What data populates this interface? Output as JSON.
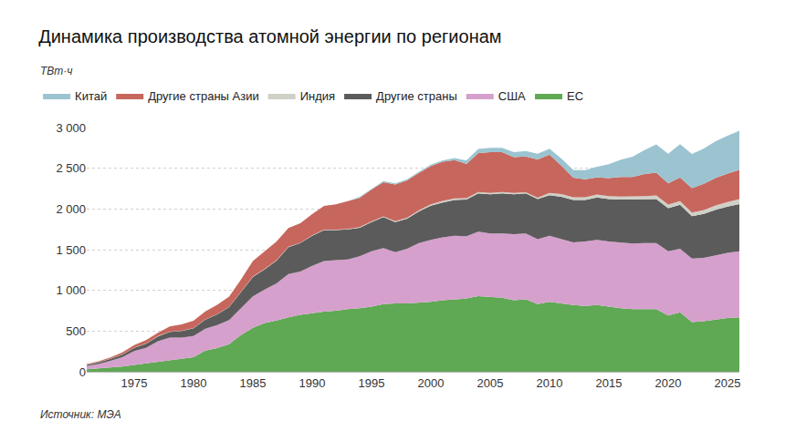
{
  "chart_data": {
    "type": "area",
    "title": "Динамика производства атомной энергии по регионам",
    "y_label": "ТВт·ч",
    "annotations": [
      "Источник: МЭА"
    ],
    "stacked": true,
    "grid": true,
    "legend": "top",
    "x": [
      1971,
      1972,
      1973,
      1974,
      1975,
      1976,
      1977,
      1978,
      1979,
      1980,
      1981,
      1982,
      1983,
      1984,
      1985,
      1986,
      1987,
      1988,
      1989,
      1990,
      1991,
      1992,
      1993,
      1994,
      1995,
      1996,
      1997,
      1998,
      1999,
      2000,
      2001,
      2002,
      2003,
      2004,
      2005,
      2006,
      2007,
      2008,
      2009,
      2010,
      2011,
      2012,
      2013,
      2014,
      2015,
      2016,
      2017,
      2018,
      2019,
      2020,
      2021,
      2022,
      2023,
      2024,
      2025,
      2026
    ],
    "xlim": [
      1971,
      2026
    ],
    "xticks": [
      1975,
      1980,
      1985,
      1990,
      1995,
      2000,
      2005,
      2010,
      2015,
      2020,
      2025
    ],
    "ylim": [
      0,
      3000
    ],
    "yticks": [
      0,
      500,
      {
        "value": 1000,
        "label": "1 000"
      },
      {
        "value": 1500,
        "label": "1 500"
      },
      {
        "value": 2000,
        "label": "2 000"
      },
      {
        "value": 2500,
        "label": "2 500"
      },
      {
        "value": 3000,
        "label": "3 000"
      }
    ],
    "series": [
      {
        "name": "ЕС",
        "color": "#5fa854",
        "values": [
          30,
          40,
          50,
          65,
          85,
          105,
          125,
          145,
          160,
          180,
          260,
          290,
          340,
          450,
          540,
          600,
          630,
          670,
          700,
          720,
          740,
          750,
          770,
          780,
          800,
          830,
          840,
          840,
          850,
          860,
          880,
          890,
          900,
          930,
          920,
          910,
          880,
          890,
          830,
          860,
          840,
          820,
          810,
          820,
          800,
          780,
          770,
          770,
          770,
          690,
          730,
          610,
          620,
          640,
          660,
          670
        ]
      },
      {
        "name": "США",
        "color": "#d6a0cd",
        "values": [
          40,
          55,
          85,
          115,
          170,
          190,
          250,
          275,
          260,
          260,
          270,
          285,
          295,
          330,
          385,
          410,
          455,
          530,
          530,
          580,
          620,
          620,
          610,
          640,
          680,
          690,
          630,
          670,
          730,
          760,
          770,
          780,
          765,
          790,
          780,
          790,
          810,
          810,
          800,
          810,
          790,
          770,
          790,
          800,
          800,
          805,
          805,
          810,
          810,
          790,
          780,
          780,
          780,
          790,
          800,
          810
        ]
      },
      {
        "name": "Другие страны",
        "color": "#5b5b5b",
        "values": [
          15,
          20,
          25,
          30,
          40,
          50,
          60,
          70,
          80,
          95,
          110,
          130,
          160,
          200,
          240,
          250,
          280,
          330,
          350,
          370,
          380,
          370,
          370,
          350,
          360,
          380,
          370,
          370,
          390,
          420,
          430,
          440,
          450,
          470,
          480,
          490,
          490,
          490,
          490,
          500,
          520,
          520,
          510,
          520,
          520,
          530,
          540,
          540,
          540,
          530,
          540,
          520,
          540,
          560,
          570,
          580
        ]
      },
      {
        "name": "Индия",
        "color": "#cfd0c6",
        "values": [
          1,
          2,
          2,
          2,
          2,
          3,
          3,
          3,
          3,
          3,
          3,
          2,
          3,
          4,
          5,
          5,
          5,
          6,
          5,
          6,
          6,
          7,
          5,
          6,
          8,
          9,
          10,
          12,
          13,
          17,
          19,
          19,
          18,
          17,
          17,
          17,
          17,
          15,
          17,
          26,
          33,
          33,
          34,
          36,
          38,
          38,
          38,
          39,
          45,
          43,
          47,
          46,
          48,
          52,
          55,
          60
        ]
      },
      {
        "name": "Другие страны Азии",
        "color": "#c7665d",
        "values": [
          10,
          12,
          15,
          25,
          30,
          40,
          40,
          65,
          80,
          90,
          100,
          115,
          125,
          150,
          190,
          210,
          230,
          230,
          240,
          260,
          290,
          310,
          340,
          360,
          390,
          420,
          450,
          460,
          460,
          470,
          480,
          470,
          420,
          480,
          500,
          490,
          440,
          440,
          470,
          470,
          350,
          240,
          220,
          210,
          220,
          240,
          240,
          270,
          280,
          260,
          290,
          300,
          320,
          340,
          350,
          360
        ]
      },
      {
        "name": "Китай",
        "color": "#9bc4d0",
        "values": [
          0,
          0,
          0,
          0,
          0,
          0,
          0,
          0,
          0,
          0,
          0,
          0,
          0,
          0,
          0,
          0,
          0,
          0,
          0,
          0,
          0,
          0,
          0,
          13,
          13,
          14,
          14,
          14,
          15,
          17,
          18,
          25,
          43,
          50,
          53,
          55,
          62,
          68,
          70,
          74,
          86,
          97,
          112,
          133,
          171,
          213,
          248,
          295,
          348,
          366,
          408,
          418,
          434,
          451,
          465,
          480
        ]
      }
    ]
  }
}
